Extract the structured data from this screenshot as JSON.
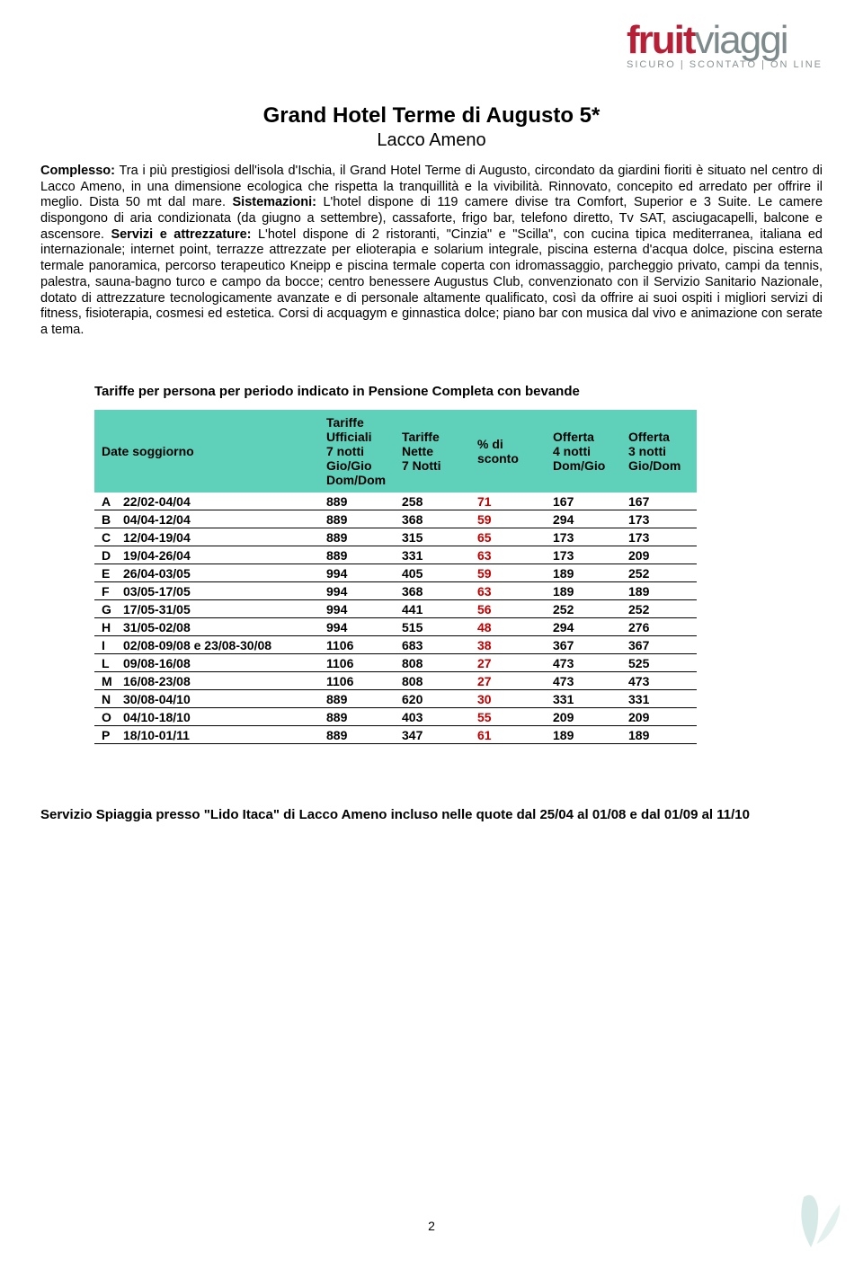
{
  "logo": {
    "word1": "fruit",
    "word2": "viaggi",
    "tagline": "SICURO | SCONTATO | ON LINE",
    "primary_color": "#b71f36",
    "secondary_color": "#7d8a8c"
  },
  "title": "Grand Hotel Terme di Augusto 5*",
  "subtitle": "Lacco Ameno",
  "body": {
    "b1": "Complesso:",
    "t1": " Tra i più prestigiosi dell'isola d'Ischia, il Grand Hotel Terme di Augusto, circondato da giardini fioriti è situato nel centro di Lacco Ameno, in una dimensione ecologica che rispetta la tranquillità e la vivibilità. Rinnovato, concepito ed arredato per offrire il meglio. Dista 50 mt dal mare. ",
    "b2": "Sistemazioni:",
    "t2": " L'hotel dispone di 119 camere divise tra Comfort, Superior e 3 Suite. Le camere dispongono di aria condizionata (da giugno a settembre), cassaforte, frigo bar, telefono diretto, Tv SAT, asciugacapelli, balcone e ascensore. ",
    "b3": "Servizi e attrezzature:",
    "t3": " L'hotel dispone di 2 ristoranti, \"Cinzia\" e \"Scilla\", con cucina tipica mediterranea, italiana ed internazionale; internet point, terrazze attrezzate per elioterapia e solarium integrale, piscina esterna d'acqua dolce, piscina esterna termale panoramica, percorso terapeutico Kneipp e piscina termale coperta con idromassaggio, parcheggio privato, campi da tennis, palestra, sauna-bagno turco e campo da bocce; centro benessere Augustus Club, convenzionato con il Servizio Sanitario Nazionale, dotato di attrezzature tecnologicamente avanzate e di personale altamente qualificato, così da offrire ai suoi ospiti i migliori servizi di fitness, fisioterapia, cosmesi ed estetica. Corsi di acquagym e ginnastica dolce; piano bar con musica dal vivo e animazione con serate a tema."
  },
  "table": {
    "title": "Tariffe per persona per periodo indicato in Pensione Completa con bevande",
    "header_bg": "#5fd1bb",
    "sconto_color": "#c00000",
    "columns": {
      "date": "Date soggiorno",
      "ufficiali": "Tariffe\nUfficiali\n7 notti\nGio/Gio\nDom/Dom",
      "nette": "Tariffe\nNette\n7 Notti",
      "sconto": "% di\nsconto",
      "off4": "Offerta\n4 notti\nDom/Gio",
      "off3": "Offerta\n3 notti\nGio/Dom"
    },
    "rows": [
      {
        "code": "A",
        "date": "22/02-04/04",
        "uff": "889",
        "net": "258",
        "sc": "71",
        "o4": "167",
        "o3": "167"
      },
      {
        "code": "B",
        "date": "04/04-12/04",
        "uff": "889",
        "net": "368",
        "sc": "59",
        "o4": "294",
        "o3": "173"
      },
      {
        "code": "C",
        "date": "12/04-19/04",
        "uff": "889",
        "net": "315",
        "sc": "65",
        "o4": "173",
        "o3": "173"
      },
      {
        "code": "D",
        "date": "19/04-26/04",
        "uff": "889",
        "net": "331",
        "sc": "63",
        "o4": "173",
        "o3": "209"
      },
      {
        "code": "E",
        "date": "26/04-03/05",
        "uff": "994",
        "net": "405",
        "sc": "59",
        "o4": "189",
        "o3": "252"
      },
      {
        "code": "F",
        "date": "03/05-17/05",
        "uff": "994",
        "net": "368",
        "sc": "63",
        "o4": "189",
        "o3": "189"
      },
      {
        "code": "G",
        "date": "17/05-31/05",
        "uff": "994",
        "net": "441",
        "sc": "56",
        "o4": "252",
        "o3": "252"
      },
      {
        "code": "H",
        "date": "31/05-02/08",
        "uff": "994",
        "net": "515",
        "sc": "48",
        "o4": "294",
        "o3": "276"
      },
      {
        "code": "I",
        "date": "02/08-09/08 e 23/08-30/08",
        "uff": "1106",
        "net": "683",
        "sc": "38",
        "o4": "367",
        "o3": "367"
      },
      {
        "code": "L",
        "date": "09/08-16/08",
        "uff": "1106",
        "net": "808",
        "sc": "27",
        "o4": "473",
        "o3": "525"
      },
      {
        "code": "M",
        "date": "16/08-23/08",
        "uff": "1106",
        "net": "808",
        "sc": "27",
        "o4": "473",
        "o3": "473"
      },
      {
        "code": "N",
        "date": "30/08-04/10",
        "uff": "889",
        "net": "620",
        "sc": "30",
        "o4": "331",
        "o3": "331"
      },
      {
        "code": "O",
        "date": "04/10-18/10",
        "uff": "889",
        "net": "403",
        "sc": "55",
        "o4": "209",
        "o3": "209"
      },
      {
        "code": "P",
        "date": "18/10-01/11",
        "uff": "889",
        "net": "347",
        "sc": "61",
        "o4": "189",
        "o3": "189"
      }
    ]
  },
  "footer_note": "Servizio Spiaggia presso \"Lido Itaca\" di Lacco Ameno incluso nelle quote dal 25/04 al 01/08 e dal 01/09 al 11/10",
  "page_number": "2"
}
